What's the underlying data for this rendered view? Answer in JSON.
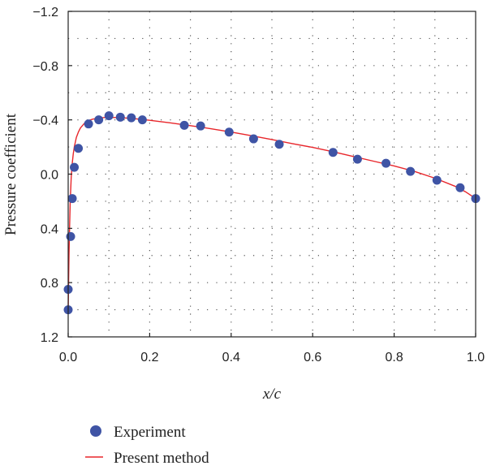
{
  "colors": {
    "experiment": "#3f54a5",
    "method": "#e8262b",
    "axis": "#222222",
    "grid": "#555555"
  },
  "chart_data": {
    "type": "scatter",
    "title": "",
    "xlabel": "x/c",
    "ylabel": "Pressure coefficient",
    "xlim": [
      0.0,
      1.0
    ],
    "ylim": [
      -1.2,
      1.2
    ],
    "y_inverted": true,
    "grid": true,
    "grid_style": "dotted",
    "x_ticks": [
      0.0,
      0.2,
      0.4,
      0.6,
      0.8,
      1.0
    ],
    "x_tick_labels": [
      "0.0",
      "0.2",
      "0.4",
      "0.6",
      "0.8",
      "1.0"
    ],
    "y_ticks": [
      -1.2,
      -0.8,
      -0.4,
      0.0,
      0.4,
      0.8,
      1.2
    ],
    "y_tick_labels": [
      "−1.2",
      "−0.8",
      "−0.4",
      "0.0",
      "0.4",
      "0.8",
      "1.2"
    ],
    "legend": {
      "placement": "bottom-left",
      "entries": [
        "Experiment",
        "Present method"
      ]
    },
    "series": [
      {
        "name": "Experiment",
        "kind": "markers",
        "x": [
          0.0,
          0.0,
          0.006,
          0.01,
          0.015,
          0.025,
          0.05,
          0.075,
          0.1,
          0.128,
          0.155,
          0.182,
          0.285,
          0.325,
          0.395,
          0.455,
          0.518,
          0.65,
          0.71,
          0.78,
          0.84,
          0.905,
          0.962,
          1.0
        ],
        "y": [
          1.0,
          0.85,
          0.46,
          0.18,
          -0.05,
          -0.19,
          -0.37,
          -0.4,
          -0.43,
          -0.42,
          -0.415,
          -0.4,
          -0.36,
          -0.355,
          -0.31,
          -0.26,
          -0.22,
          -0.16,
          -0.11,
          -0.08,
          -0.02,
          0.045,
          0.1,
          0.18
        ]
      },
      {
        "name": "Present method",
        "kind": "line",
        "x": [
          0.0,
          0.0005,
          0.001,
          0.002,
          0.003,
          0.005,
          0.0075,
          0.01,
          0.0125,
          0.015,
          0.02,
          0.025,
          0.03,
          0.04,
          0.05,
          0.06,
          0.075,
          0.09,
          0.1,
          0.125,
          0.15,
          0.175,
          0.2,
          0.25,
          0.3,
          0.35,
          0.4,
          0.45,
          0.5,
          0.55,
          0.6,
          0.65,
          0.7,
          0.75,
          0.8,
          0.85,
          0.9,
          0.95,
          0.975,
          1.0
        ],
        "y": [
          1.0,
          0.9,
          0.8,
          0.6,
          0.45,
          0.2,
          0.02,
          -0.08,
          -0.15,
          -0.2,
          -0.27,
          -0.31,
          -0.34,
          -0.375,
          -0.395,
          -0.405,
          -0.413,
          -0.418,
          -0.418,
          -0.417,
          -0.412,
          -0.405,
          -0.397,
          -0.378,
          -0.357,
          -0.335,
          -0.31,
          -0.283,
          -0.255,
          -0.225,
          -0.197,
          -0.165,
          -0.13,
          -0.095,
          -0.06,
          -0.02,
          0.03,
          0.09,
          0.13,
          0.18
        ]
      }
    ]
  }
}
